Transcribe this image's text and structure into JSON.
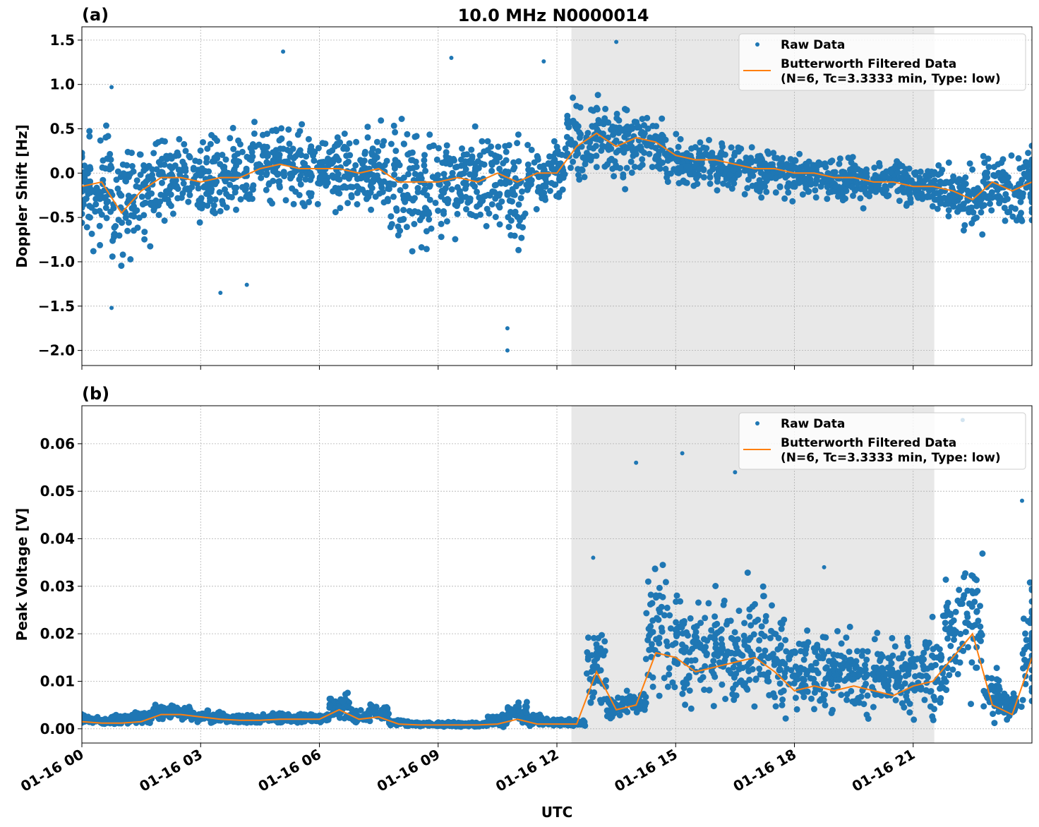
{
  "figure_title": "10.0 MHz N0000014",
  "xlabel": "UTC",
  "x_ticks": [
    "01-16 00",
    "01-16 03",
    "01-16 06",
    "01-16 09",
    "01-16 12",
    "01-16 15",
    "01-16 18",
    "01-16 21"
  ],
  "colors": {
    "raw": "#1f77b4",
    "filtered": "#ff7f0e",
    "shade": "#e8e8e8"
  },
  "chart_data": [
    {
      "type": "scatter+line",
      "panel_label": "(a)",
      "ylabel": "Doppler Shift [Hz]",
      "xlim": [
        "01-16 00:00",
        "01-17 00:00"
      ],
      "ylim": [
        -2.17,
        1.65
      ],
      "y_ticks": [
        "1.5",
        "1.0",
        "0.5",
        "0.0",
        "−0.5",
        "−1.0",
        "−1.5",
        "−2.0"
      ],
      "y_tick_values": [
        1.5,
        1.0,
        0.5,
        0.0,
        -0.5,
        -1.0,
        -1.5,
        -2.0
      ],
      "grid": true,
      "legend": "top-right",
      "shaded_interval": [
        "01-16 12:22",
        "01-16 21:32"
      ],
      "legend_entries": [
        "Raw Data",
        "Butterworth Filtered Data\n(N=6, Tc=3.3333 min, Type: low)"
      ],
      "filtered": {
        "name": "Butterworth Filtered Data",
        "values": [
          -0.15,
          -0.1,
          -0.45,
          -0.2,
          -0.05,
          -0.05,
          -0.1,
          -0.05,
          -0.05,
          0.05,
          0.1,
          0.05,
          0.05,
          0.05,
          0.0,
          0.05,
          -0.1,
          -0.1,
          -0.1,
          -0.05,
          -0.1,
          0.0,
          -0.1,
          0.0,
          0.0,
          0.3,
          0.45,
          0.3,
          0.4,
          0.35,
          0.2,
          0.15,
          0.15,
          0.1,
          0.05,
          0.05,
          0.0,
          0.0,
          -0.05,
          -0.05,
          -0.1,
          -0.1,
          -0.15,
          -0.15,
          -0.2,
          -0.3,
          -0.1,
          -0.2,
          -0.1
        ]
      },
      "raw_envelope": {
        "name": "Raw Data",
        "low": [
          -0.7,
          -0.8,
          -1.0,
          -0.8,
          -0.5,
          -0.5,
          -0.55,
          -0.5,
          -0.5,
          -0.4,
          -0.4,
          -0.4,
          -0.4,
          -0.45,
          -0.45,
          -0.5,
          -0.8,
          -0.8,
          -0.8,
          -0.7,
          -0.7,
          -0.6,
          -0.9,
          -0.6,
          -0.3,
          -0.1,
          0.0,
          -0.1,
          0.0,
          -0.05,
          -0.15,
          -0.2,
          -0.2,
          -0.25,
          -0.25,
          -0.25,
          -0.3,
          -0.3,
          -0.35,
          -0.35,
          -0.35,
          -0.35,
          -0.4,
          -0.4,
          -0.5,
          -0.7,
          -0.5,
          -0.6,
          -0.5
        ],
        "high": [
          0.4,
          0.5,
          0.3,
          0.3,
          0.35,
          0.35,
          0.35,
          0.4,
          0.45,
          0.55,
          0.6,
          0.55,
          0.5,
          0.5,
          0.5,
          0.5,
          0.6,
          0.6,
          0.5,
          0.5,
          0.45,
          0.5,
          0.4,
          0.35,
          0.35,
          0.8,
          0.9,
          0.75,
          0.7,
          0.6,
          0.45,
          0.4,
          0.45,
          0.35,
          0.3,
          0.3,
          0.25,
          0.25,
          0.2,
          0.2,
          0.15,
          0.15,
          0.1,
          0.1,
          0.1,
          0.1,
          0.25,
          0.2,
          0.25
        ]
      },
      "outliers": [
        [
          "01-16 00:45",
          -1.52
        ],
        [
          "01-16 00:45",
          0.97
        ],
        [
          "01-16 05:05",
          1.37
        ],
        [
          "01-16 09:20",
          1.3
        ],
        [
          "01-16 10:45",
          -2.0
        ],
        [
          "01-16 10:45",
          -1.75
        ],
        [
          "01-16 13:30",
          1.48
        ],
        [
          "01-16 03:30",
          -1.35
        ],
        [
          "01-16 11:40",
          1.26
        ],
        [
          "01-16 04:10",
          -1.26
        ]
      ]
    },
    {
      "type": "scatter+line",
      "panel_label": "(b)",
      "ylabel": "Peak Voltage [V]",
      "xlim": [
        "01-16 00:00",
        "01-17 00:00"
      ],
      "ylim": [
        -0.003,
        0.068
      ],
      "y_ticks": [
        "0.00",
        "0.01",
        "0.02",
        "0.03",
        "0.04",
        "0.05",
        "0.06"
      ],
      "y_tick_values": [
        0,
        0.01,
        0.02,
        0.03,
        0.04,
        0.05,
        0.06
      ],
      "grid": true,
      "legend": "top-right",
      "shaded_interval": [
        "01-16 12:22",
        "01-16 21:32"
      ],
      "legend_entries": [
        "Raw Data",
        "Butterworth Filtered Data\n(N=6, Tc=3.3333 min, Type: low)"
      ],
      "filtered": {
        "name": "Butterworth Filtered Data",
        "values": [
          0.0015,
          0.0012,
          0.0012,
          0.0015,
          0.003,
          0.003,
          0.0025,
          0.002,
          0.0018,
          0.0018,
          0.002,
          0.002,
          0.002,
          0.004,
          0.002,
          0.0025,
          0.001,
          0.0008,
          0.0008,
          0.0008,
          0.0008,
          0.001,
          0.002,
          0.001,
          0.001,
          0.001,
          0.012,
          0.004,
          0.005,
          0.016,
          0.015,
          0.012,
          0.013,
          0.014,
          0.015,
          0.012,
          0.008,
          0.009,
          0.008,
          0.009,
          0.008,
          0.007,
          0.009,
          0.01,
          0.015,
          0.02,
          0.005,
          0.003,
          0.015
        ]
      },
      "raw_envelope": {
        "name": "Raw Data",
        "low": [
          0.001,
          0.0008,
          0.0008,
          0.001,
          0.002,
          0.002,
          0.0015,
          0.0012,
          0.0012,
          0.0012,
          0.0013,
          0.0013,
          0.0012,
          0.002,
          0.0012,
          0.0015,
          0.0005,
          0.0004,
          0.0004,
          0.0004,
          0.0004,
          0.0006,
          0.001,
          0.0006,
          0.0006,
          0.0005,
          0.004,
          0.002,
          0.003,
          0.005,
          0.005,
          0.004,
          0.004,
          0.004,
          0.004,
          0.004,
          0.003,
          0.003,
          0.003,
          0.003,
          0.003,
          0.003,
          0.003,
          0.003,
          0.004,
          0.005,
          0.002,
          0.002,
          0.004
        ],
        "high": [
          0.003,
          0.0025,
          0.003,
          0.004,
          0.005,
          0.005,
          0.004,
          0.0035,
          0.003,
          0.003,
          0.0035,
          0.0035,
          0.0035,
          0.008,
          0.004,
          0.005,
          0.002,
          0.0015,
          0.0015,
          0.0015,
          0.0015,
          0.003,
          0.006,
          0.003,
          0.002,
          0.002,
          0.022,
          0.007,
          0.008,
          0.035,
          0.03,
          0.028,
          0.03,
          0.027,
          0.03,
          0.025,
          0.02,
          0.022,
          0.02,
          0.02,
          0.02,
          0.018,
          0.02,
          0.025,
          0.035,
          0.04,
          0.012,
          0.008,
          0.035
        ]
      },
      "outliers": [
        [
          "01-16 22:15",
          0.065
        ],
        [
          "01-16 14:00",
          0.056
        ],
        [
          "01-16 15:10",
          0.058
        ],
        [
          "01-16 16:30",
          0.054
        ],
        [
          "01-16 12:55",
          0.036
        ],
        [
          "01-16 18:45",
          0.034
        ],
        [
          "01-16 23:45",
          0.048
        ]
      ]
    }
  ]
}
